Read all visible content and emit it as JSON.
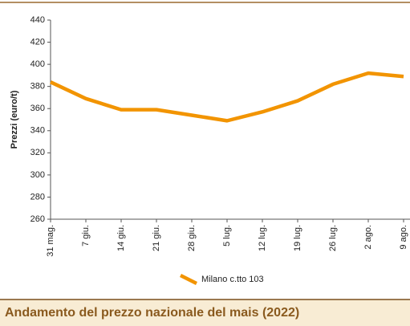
{
  "chart_data": {
    "type": "line",
    "title": "Andamento del prezzo nazionale del mais (2022)",
    "y_label": "Prezzi (euro/t)",
    "categories": [
      "31 mag.",
      "7 giu.",
      "14 giu.",
      "21 giu.",
      "28 giu.",
      "5 lug.",
      "12 lug.",
      "19 lug.",
      "26 lug.",
      "2 ago.",
      "9 ago."
    ],
    "series": [
      {
        "name": "Milano c.tto 103",
        "color": "#f29400",
        "values": [
          384,
          369,
          359,
          359,
          354,
          349,
          357,
          367,
          382,
          392,
          389
        ]
      }
    ],
    "ylim": [
      260,
      440
    ],
    "yticks": [
      260,
      280,
      300,
      320,
      340,
      360,
      380,
      400,
      420,
      440
    ],
    "grid": false,
    "legend": "bottom"
  }
}
